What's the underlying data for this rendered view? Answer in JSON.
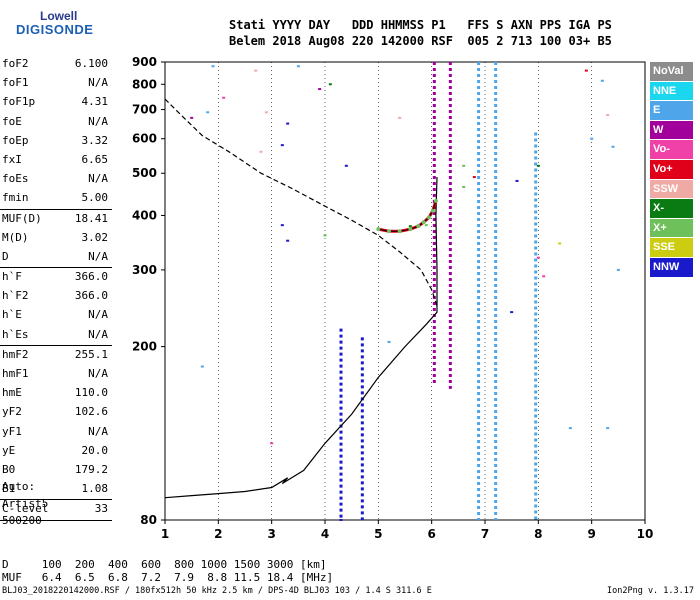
{
  "logo": {
    "line1": "Lowell",
    "line2": "DIGISONDE"
  },
  "header": {
    "line1": "Stati YYYY DAY   DDD HHMMSS P1   FFS S AXN PPS IGA PS",
    "line2": "Belem 2018 Aug08 220 142000 RSF  005 2 713 100 03+ B5"
  },
  "params": [
    {
      "name": "foF2",
      "value": "6.100"
    },
    {
      "name": "foF1",
      "value": "N/A"
    },
    {
      "name": "foF1p",
      "value": "4.31"
    },
    {
      "name": "foE",
      "value": "N/A"
    },
    {
      "name": "foEp",
      "value": "3.32"
    },
    {
      "name": "fxI",
      "value": "6.65"
    },
    {
      "name": "foEs",
      "value": "N/A"
    },
    {
      "name": "fmin",
      "value": "5.00"
    },
    {
      "name": "MUF(D)",
      "value": "18.41"
    },
    {
      "name": "M(D)",
      "value": "3.02"
    },
    {
      "name": "D",
      "value": "N/A"
    },
    {
      "name": "h`F",
      "value": "366.0"
    },
    {
      "name": "h`F2",
      "value": "366.0"
    },
    {
      "name": "h`E",
      "value": "N/A"
    },
    {
      "name": "h`Es",
      "value": "N/A"
    },
    {
      "name": "hmF2",
      "value": "255.1"
    },
    {
      "name": "hmF1",
      "value": "N/A"
    },
    {
      "name": "hmE",
      "value": "110.0"
    },
    {
      "name": "yF2",
      "value": "102.6"
    },
    {
      "name": "yF1",
      "value": "N/A"
    },
    {
      "name": "yE",
      "value": "20.0"
    },
    {
      "name": "B0",
      "value": "179.2"
    },
    {
      "name": "B1",
      "value": "1.08"
    },
    {
      "name": "C-level",
      "value": "33"
    }
  ],
  "extra": {
    "line1": "Auto:",
    "line2": "Artist5",
    "line3": "500200"
  },
  "legend": [
    {
      "label": "NoVal",
      "color": "#8c8c8c"
    },
    {
      "label": "NNE",
      "color": "#1ad7ef"
    },
    {
      "label": "E",
      "color": "#4ea5e9"
    },
    {
      "label": "W",
      "color": "#a2009a"
    },
    {
      "label": "Vo-",
      "color": "#ef41a8"
    },
    {
      "label": "Vo+",
      "color": "#e0001a"
    },
    {
      "label": "SSW",
      "color": "#f0aaa5"
    },
    {
      "label": "X-",
      "color": "#0a7a12"
    },
    {
      "label": "X+",
      "color": "#6ec05a"
    },
    {
      "label": "SSE",
      "color": "#cccc10"
    },
    {
      "label": "NNW",
      "color": "#1a1acc"
    }
  ],
  "bottom": {
    "dline": "D     100  200  400  600  800 1000 1500 3000 [km]",
    "mufline": "MUF   6.4  6.5  6.8  7.2  7.9  8.8 11.5 18.4 [MHz]"
  },
  "footer": {
    "left": "BLJ03_2018220142000.RSF / 180fx512h 50 kHz 2.5 km / DPS-4D BLJ03 103 / 1.4 S 311.6 E",
    "right": "Ion2Png v. 1.3.17"
  },
  "chart_data": {
    "type": "scatter",
    "title": "",
    "xlabel": "",
    "ylabel": "",
    "xlim": [
      1,
      10
    ],
    "ylim": [
      80,
      900
    ],
    "xticks": [
      1,
      2,
      3,
      4,
      5,
      6,
      7,
      8,
      9,
      10
    ],
    "yticks": [
      80,
      200,
      300,
      400,
      500,
      600,
      700,
      800,
      900
    ],
    "ylog": true,
    "profile_dashed": {
      "x": [
        1.0,
        1.3,
        1.7,
        2.2,
        2.8,
        3.4,
        4.0,
        4.5,
        5.0,
        5.4,
        5.8,
        6.0,
        6.1
      ],
      "y": [
        740,
        680,
        610,
        560,
        500,
        460,
        420,
        390,
        360,
        330,
        300,
        270,
        248
      ]
    },
    "profile_solid": {
      "x": [
        1.0,
        1.5,
        2.0,
        2.5,
        3.0,
        3.3,
        3.2,
        3.6,
        4.0,
        4.5,
        5.0,
        5.5,
        5.9,
        6.1,
        6.1,
        6.08,
        6.1
      ],
      "y": [
        90,
        91,
        92,
        93,
        95,
        100,
        97,
        104,
        120,
        140,
        170,
        200,
        225,
        240,
        300,
        400,
        490
      ]
    },
    "trace_F": {
      "x": [
        5.0,
        5.2,
        5.4,
        5.6,
        5.75,
        5.85,
        5.95,
        6.02,
        6.08
      ],
      "y": [
        372,
        368,
        368,
        372,
        378,
        386,
        396,
        410,
        432
      ]
    },
    "echo_columns": [
      {
        "x": 6.05,
        "y0": 165,
        "y1": 900,
        "color": "#a2009a"
      },
      {
        "x": 6.35,
        "y0": 160,
        "y1": 900,
        "color": "#a2009a"
      },
      {
        "x": 6.88,
        "y0": 80,
        "y1": 900,
        "color": "#4ea5e9"
      },
      {
        "x": 7.2,
        "y0": 80,
        "y1": 900,
        "color": "#4ea5e9"
      },
      {
        "x": 7.95,
        "y0": 80,
        "y1": 620,
        "color": "#4ea5e9"
      },
      {
        "x": 4.3,
        "y0": 80,
        "y1": 220,
        "color": "#1a1acc"
      },
      {
        "x": 4.7,
        "y0": 80,
        "y1": 210,
        "color": "#1a1acc"
      }
    ],
    "scatter_points": [
      {
        "x": 1.9,
        "y": 880,
        "c": "#4ea5e9"
      },
      {
        "x": 2.7,
        "y": 860,
        "c": "#f0aaa5"
      },
      {
        "x": 3.5,
        "y": 880,
        "c": "#4ea5e9"
      },
      {
        "x": 8.9,
        "y": 860,
        "c": "#e0001a"
      },
      {
        "x": 9.2,
        "y": 815,
        "c": "#4ea5e9"
      },
      {
        "x": 4.1,
        "y": 800,
        "c": "#0a7a12"
      },
      {
        "x": 3.9,
        "y": 780,
        "c": "#a2009a"
      },
      {
        "x": 2.1,
        "y": 745,
        "c": "#ef41a8"
      },
      {
        "x": 1.8,
        "y": 690,
        "c": "#4ea5e9"
      },
      {
        "x": 1.5,
        "y": 670,
        "c": "#a2009a"
      },
      {
        "x": 3.3,
        "y": 650,
        "c": "#1a1acc"
      },
      {
        "x": 2.9,
        "y": 690,
        "c": "#f0aaa5"
      },
      {
        "x": 5.4,
        "y": 670,
        "c": "#f0aaa5"
      },
      {
        "x": 9.3,
        "y": 680,
        "c": "#f0aaa5"
      },
      {
        "x": 9.0,
        "y": 600,
        "c": "#4ea5e9"
      },
      {
        "x": 3.2,
        "y": 580,
        "c": "#1a1acc"
      },
      {
        "x": 2.8,
        "y": 560,
        "c": "#f0aaa5"
      },
      {
        "x": 4.4,
        "y": 520,
        "c": "#1a1acc"
      },
      {
        "x": 9.4,
        "y": 575,
        "c": "#4ea5e9"
      },
      {
        "x": 8.0,
        "y": 520,
        "c": "#0a7a12"
      },
      {
        "x": 6.6,
        "y": 520,
        "c": "#6ec05a"
      },
      {
        "x": 6.8,
        "y": 490,
        "c": "#e0001a"
      },
      {
        "x": 7.6,
        "y": 480,
        "c": "#1a1acc"
      },
      {
        "x": 6.6,
        "y": 465,
        "c": "#6ec05a"
      },
      {
        "x": 5.6,
        "y": 378,
        "c": "#0a7a12"
      },
      {
        "x": 5.9,
        "y": 380,
        "c": "#6ec05a"
      },
      {
        "x": 3.2,
        "y": 380,
        "c": "#1a1acc"
      },
      {
        "x": 4.0,
        "y": 360,
        "c": "#6ec05a"
      },
      {
        "x": 3.3,
        "y": 350,
        "c": "#1a1acc"
      },
      {
        "x": 8.4,
        "y": 345,
        "c": "#cccc10"
      },
      {
        "x": 8.0,
        "y": 320,
        "c": "#ef41a8"
      },
      {
        "x": 8.1,
        "y": 290,
        "c": "#ef41a8"
      },
      {
        "x": 9.5,
        "y": 300,
        "c": "#4ea5e9"
      },
      {
        "x": 7.5,
        "y": 240,
        "c": "#1a1acc"
      },
      {
        "x": 5.2,
        "y": 205,
        "c": "#4ea5e9"
      },
      {
        "x": 1.7,
        "y": 180,
        "c": "#4ea5e9"
      },
      {
        "x": 8.6,
        "y": 130,
        "c": "#4ea5e9"
      },
      {
        "x": 9.3,
        "y": 130,
        "c": "#4ea5e9"
      },
      {
        "x": 3.0,
        "y": 120,
        "c": "#ef41a8"
      },
      {
        "x": 4.3,
        "y": 80,
        "c": "#1a1acc"
      }
    ]
  }
}
